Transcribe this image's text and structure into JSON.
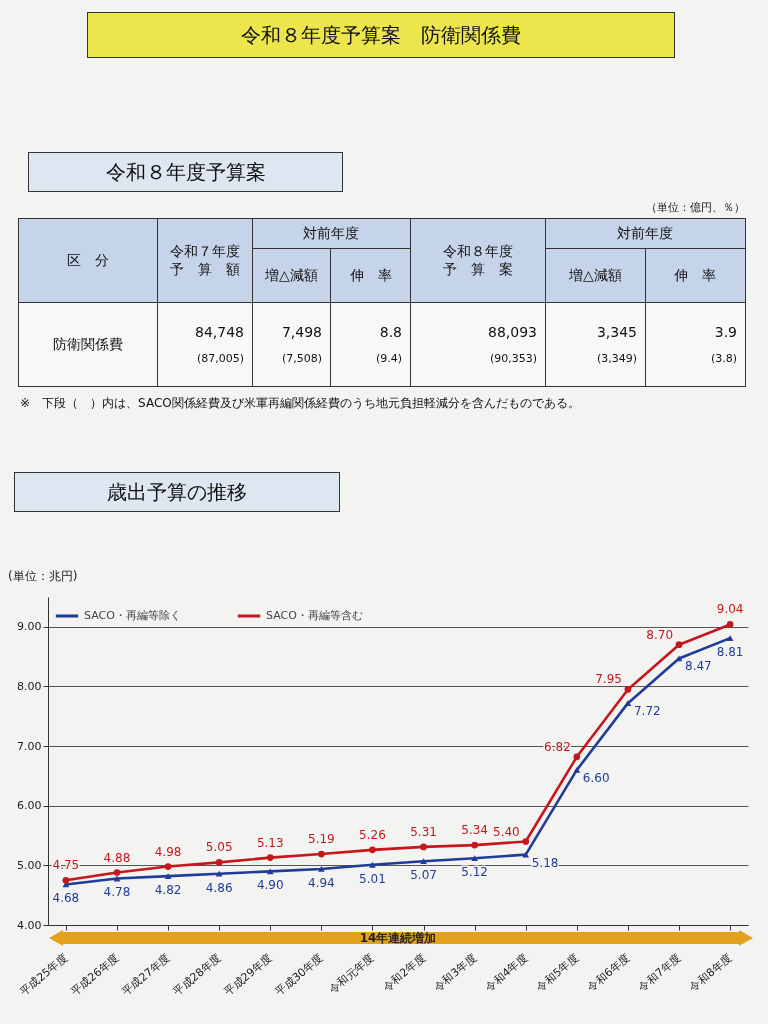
{
  "chart_data": [
    {
      "type": "other",
      "title": "令和８年度予算案　防衛関係費",
      "subtitle": "令和８年度予算案",
      "annotations": [
        "（単位：億円、％）",
        "※　下段（　）内は、SACO関係経費及び米軍再編関係経費のうち地元負担軽減分を含んだものである。"
      ],
      "cell_labels": [
        [
          "区　分",
          "令和７年度予　算　額",
          "対前年度",
          null,
          "令和８年度予　算　案",
          "対前年度",
          null
        ],
        [
          null,
          null,
          "増△減額",
          "伸　率",
          null,
          "増△減額",
          "伸　率"
        ],
        [
          "防衛関係費",
          "84,748\n(87,005)",
          "7,498\n(7,508)",
          "8.8\n(9.4)",
          "88,093\n(90,353)",
          "3,345\n(3,349)",
          "3.9\n(3.8)"
        ]
      ]
    },
    {
      "type": "line",
      "title": "歳出予算の推移",
      "ylabel": "(単位：兆円)",
      "categories": [
        "平成25年度",
        "平成26年度",
        "平成27年度",
        "平成28年度",
        "平成29年度",
        "平成30年度",
        "令和元年度",
        "令和2年度",
        "令和3年度",
        "令和4年度",
        "令和5年度",
        "令和6年度",
        "令和7年度",
        "令和8年度"
      ],
      "series": [
        {
          "name": "SACO・再編等除く",
          "color": "#1f3c98",
          "marker": "triangle",
          "values": [
            4.68,
            4.78,
            4.82,
            4.86,
            4.9,
            4.94,
            5.01,
            5.07,
            5.12,
            5.18,
            6.6,
            7.72,
            8.47,
            8.81
          ],
          "value_labels": [
            "4.68",
            "4.78",
            "4.82",
            "4.86",
            "4.90",
            "4.94",
            "5.01",
            "5.07",
            "5.12",
            "5.18",
            "6.60",
            "7.72",
            "8.47",
            "8.81"
          ]
        },
        {
          "name": "SACO・再編等含む",
          "color": "#c8161d",
          "marker": "circle",
          "values": [
            4.75,
            4.88,
            4.98,
            5.05,
            5.13,
            5.19,
            5.26,
            5.31,
            5.34,
            5.4,
            6.82,
            7.95,
            8.7,
            9.04
          ],
          "value_labels": [
            "4.75",
            "4.88",
            "4.98",
            "5.05",
            "5.13",
            "5.19",
            "5.26",
            "5.31",
            "5.34",
            "5.40",
            "6.82",
            "7.95",
            "8.70",
            "9.04"
          ]
        }
      ],
      "ylim": [
        4,
        9.5
      ],
      "yticks": [
        {
          "value": 4,
          "label": "4.00"
        },
        {
          "value": 5,
          "label": "5.00"
        },
        {
          "value": 6,
          "label": "6.00"
        },
        {
          "value": 7,
          "label": "7.00"
        },
        {
          "value": 8,
          "label": "8.00"
        },
        {
          "value": 9,
          "label": "9.00"
        }
      ],
      "grid": "y",
      "legend": "top left",
      "annotations": [
        "14年連続増加"
      ]
    }
  ]
}
